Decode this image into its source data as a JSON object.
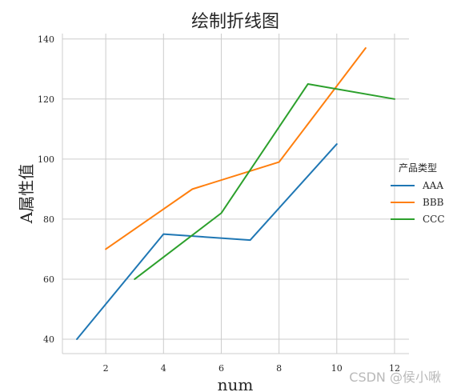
{
  "chart_data": {
    "type": "line",
    "title": "绘制折线图",
    "xlabel": "num",
    "ylabel": "A属性值",
    "xlim": [
      0.5,
      12.5
    ],
    "ylim": [
      35.2,
      141.8
    ],
    "xticks": [
      2,
      4,
      6,
      8,
      10,
      12
    ],
    "yticks": [
      40,
      60,
      80,
      100,
      120,
      140
    ],
    "grid": true,
    "legend": {
      "title": "产品类型",
      "placement": "right"
    },
    "series": [
      {
        "name": "AAA",
        "color": "#1f77b4",
        "points": [
          [
            1,
            40
          ],
          [
            4,
            75
          ],
          [
            7,
            73
          ],
          [
            10,
            105
          ]
        ]
      },
      {
        "name": "BBB",
        "color": "#ff7f0e",
        "points": [
          [
            2,
            70
          ],
          [
            5,
            90
          ],
          [
            8,
            99
          ],
          [
            11,
            137
          ]
        ]
      },
      {
        "name": "CCC",
        "color": "#2ca02c",
        "points": [
          [
            3,
            60
          ],
          [
            6,
            82
          ],
          [
            9,
            125
          ],
          [
            12,
            120
          ]
        ]
      }
    ]
  },
  "watermark": "CSDN @侯小啾"
}
